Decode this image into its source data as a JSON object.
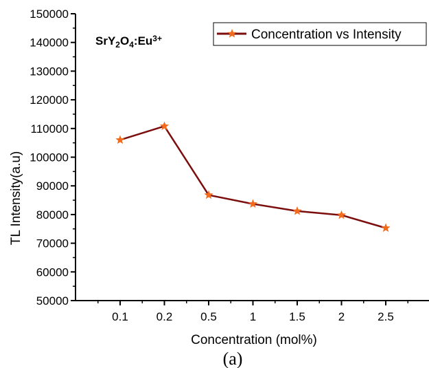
{
  "chart_data": {
    "type": "line",
    "title": "",
    "xlabel": "Concentration (mol%)",
    "ylabel": "TL Intensity(a.u)",
    "categories": [
      "0.1",
      "0.2",
      "0.5",
      "1",
      "1.5",
      "2",
      "2.5"
    ],
    "ylim": [
      50000,
      150000
    ],
    "yticks": [
      "50000",
      "60000",
      "70000",
      "80000",
      "90000",
      "100000",
      "110000",
      "120000",
      "130000",
      "140000",
      "150000"
    ],
    "series": [
      {
        "name": "Concentration vs Intensity",
        "values": [
          106000,
          110800,
          86800,
          83700,
          81200,
          79800,
          75300
        ],
        "line_color": "#7b0d0d",
        "marker": "star",
        "marker_color": "#f26a1b"
      }
    ],
    "legend_position": "top-right",
    "grid": false,
    "annotation": {
      "parts": [
        {
          "text": "SrY",
          "pos": "normal"
        },
        {
          "text": "2",
          "pos": "sub"
        },
        {
          "text": "O",
          "pos": "normal"
        },
        {
          "text": "4",
          "pos": "sub"
        },
        {
          "text": ":Eu",
          "pos": "normal"
        },
        {
          "text": "3+",
          "pos": "sup"
        }
      ]
    }
  },
  "caption": "(a)"
}
